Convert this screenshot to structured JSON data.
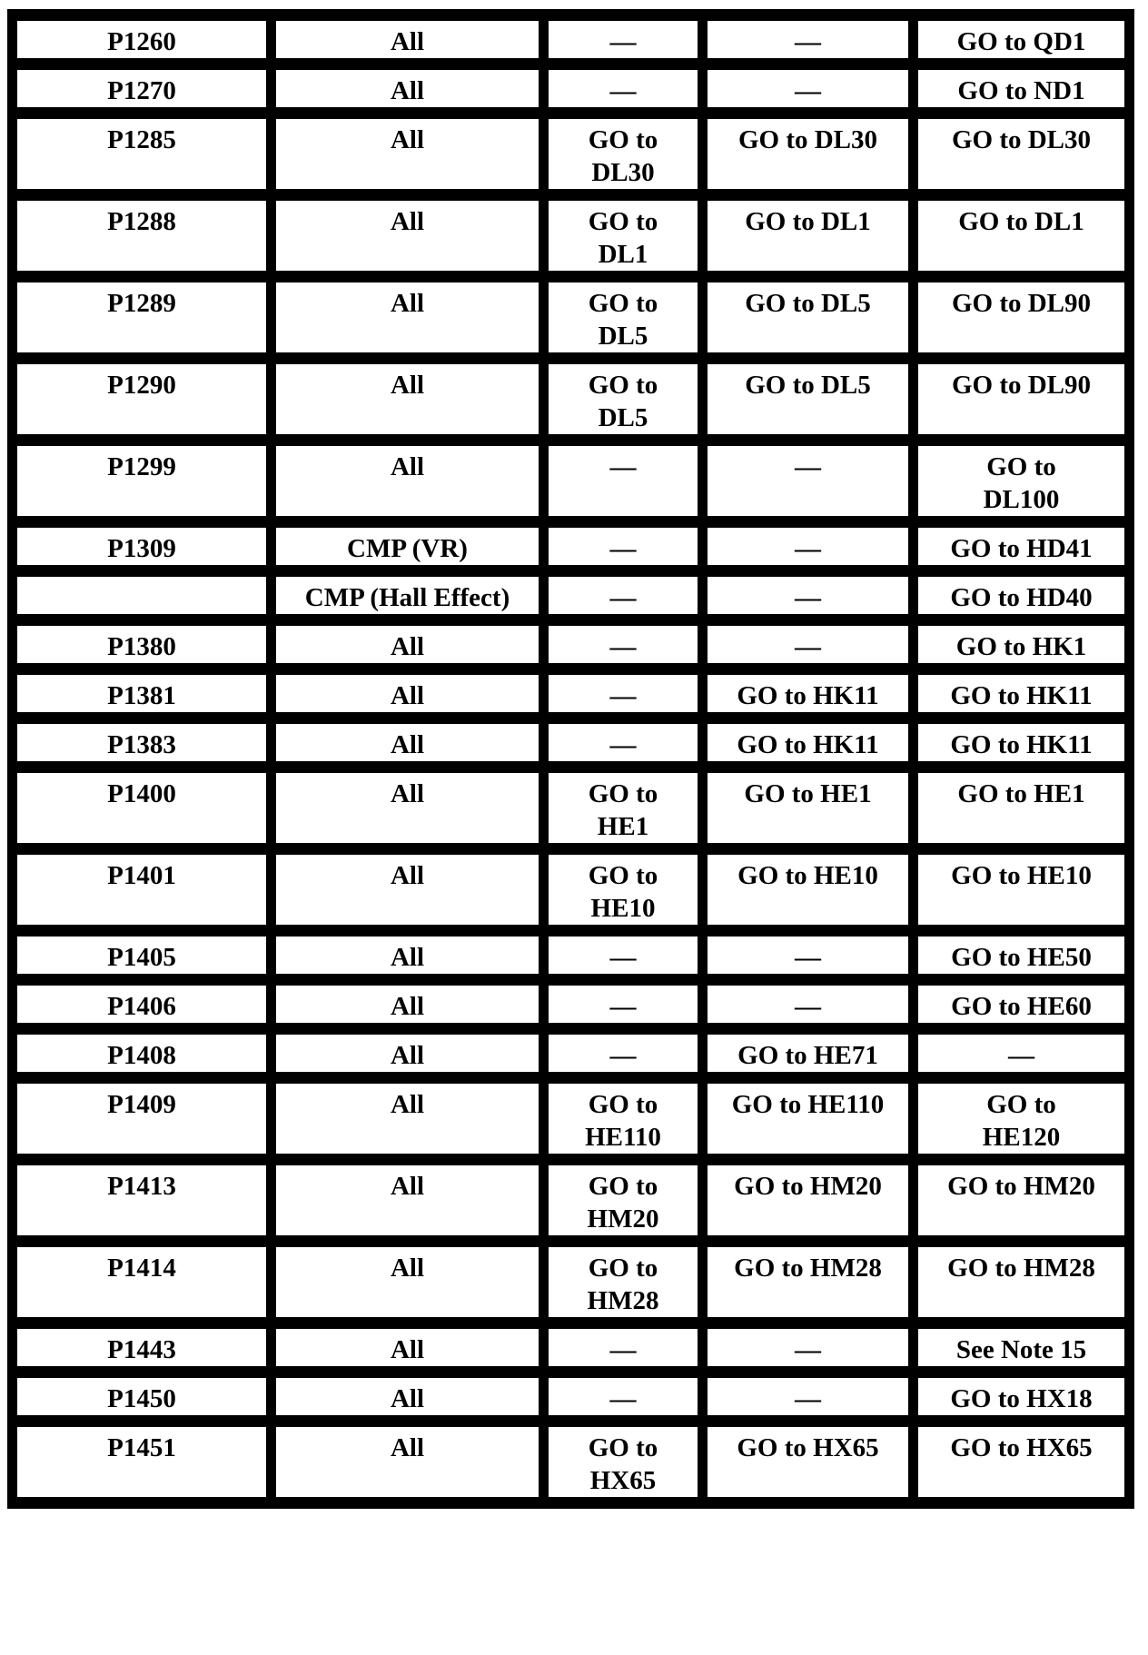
{
  "table": {
    "columns": [
      "dtc",
      "application",
      "col3",
      "col4",
      "col5"
    ],
    "rows": [
      {
        "dtc": "P1260",
        "application": "All",
        "col3": "—",
        "col4": "—",
        "col5": "GO to QD1"
      },
      {
        "dtc": "P1270",
        "application": "All",
        "col3": "—",
        "col4": "—",
        "col5": "GO to ND1"
      },
      {
        "dtc": "P1285",
        "application": "All",
        "col3": "GO to\nDL30",
        "col4": "GO to DL30",
        "col5": "GO to DL30"
      },
      {
        "dtc": "P1288",
        "application": "All",
        "col3": "GO to\nDL1",
        "col4": "GO to DL1",
        "col5": "GO to DL1"
      },
      {
        "dtc": "P1289",
        "application": "All",
        "col3": "GO to\nDL5",
        "col4": "GO to DL5",
        "col5": "GO to DL90"
      },
      {
        "dtc": "P1290",
        "application": "All",
        "col3": "GO to\nDL5",
        "col4": "GO to DL5",
        "col5": "GO to DL90"
      },
      {
        "dtc": "P1299",
        "application": "All",
        "col3": "—",
        "col4": "—",
        "col5": "GO to\nDL100"
      },
      {
        "dtc": "P1309",
        "application": "CMP (VR)",
        "col3": "—",
        "col4": "—",
        "col5": "GO to HD41"
      },
      {
        "dtc": "",
        "application": "CMP (Hall Effect)",
        "col3": "—",
        "col4": "—",
        "col5": "GO to HD40"
      },
      {
        "dtc": "P1380",
        "application": "All",
        "col3": "—",
        "col4": "—",
        "col5": "GO to HK1"
      },
      {
        "dtc": "P1381",
        "application": "All",
        "col3": "—",
        "col4": "GO to HK11",
        "col5": "GO to HK11"
      },
      {
        "dtc": "P1383",
        "application": "All",
        "col3": "—",
        "col4": "GO to HK11",
        "col5": "GO to HK11"
      },
      {
        "dtc": "P1400",
        "application": "All",
        "col3": "GO to\nHE1",
        "col4": "GO to HE1",
        "col5": "GO to HE1"
      },
      {
        "dtc": "P1401",
        "application": "All",
        "col3": "GO to\nHE10",
        "col4": "GO to HE10",
        "col5": "GO to HE10"
      },
      {
        "dtc": "P1405",
        "application": "All",
        "col3": "—",
        "col4": "—",
        "col5": "GO to HE50"
      },
      {
        "dtc": "P1406",
        "application": "All",
        "col3": "—",
        "col4": "—",
        "col5": "GO to HE60"
      },
      {
        "dtc": "P1408",
        "application": "All",
        "col3": "—",
        "col4": "GO to HE71",
        "col5": "—"
      },
      {
        "dtc": "P1409",
        "application": "All",
        "col3": "GO to\nHE110",
        "col4": "GO to HE110",
        "col5": "GO to\nHE120"
      },
      {
        "dtc": "P1413",
        "application": "All",
        "col3": "GO to\nHM20",
        "col4": "GO to HM20",
        "col5": "GO to HM20"
      },
      {
        "dtc": "P1414",
        "application": "All",
        "col3": "GO to\nHM28",
        "col4": "GO to HM28",
        "col5": "GO to HM28"
      },
      {
        "dtc": "P1443",
        "application": "All",
        "col3": "—",
        "col4": "—",
        "col5": "See Note 15"
      },
      {
        "dtc": "P1450",
        "application": "All",
        "col3": "—",
        "col4": "—",
        "col5": "GO to HX18"
      },
      {
        "dtc": "P1451",
        "application": "All",
        "col3": "GO to\nHX65",
        "col4": "GO to HX65",
        "col5": "GO to HX65"
      }
    ]
  }
}
